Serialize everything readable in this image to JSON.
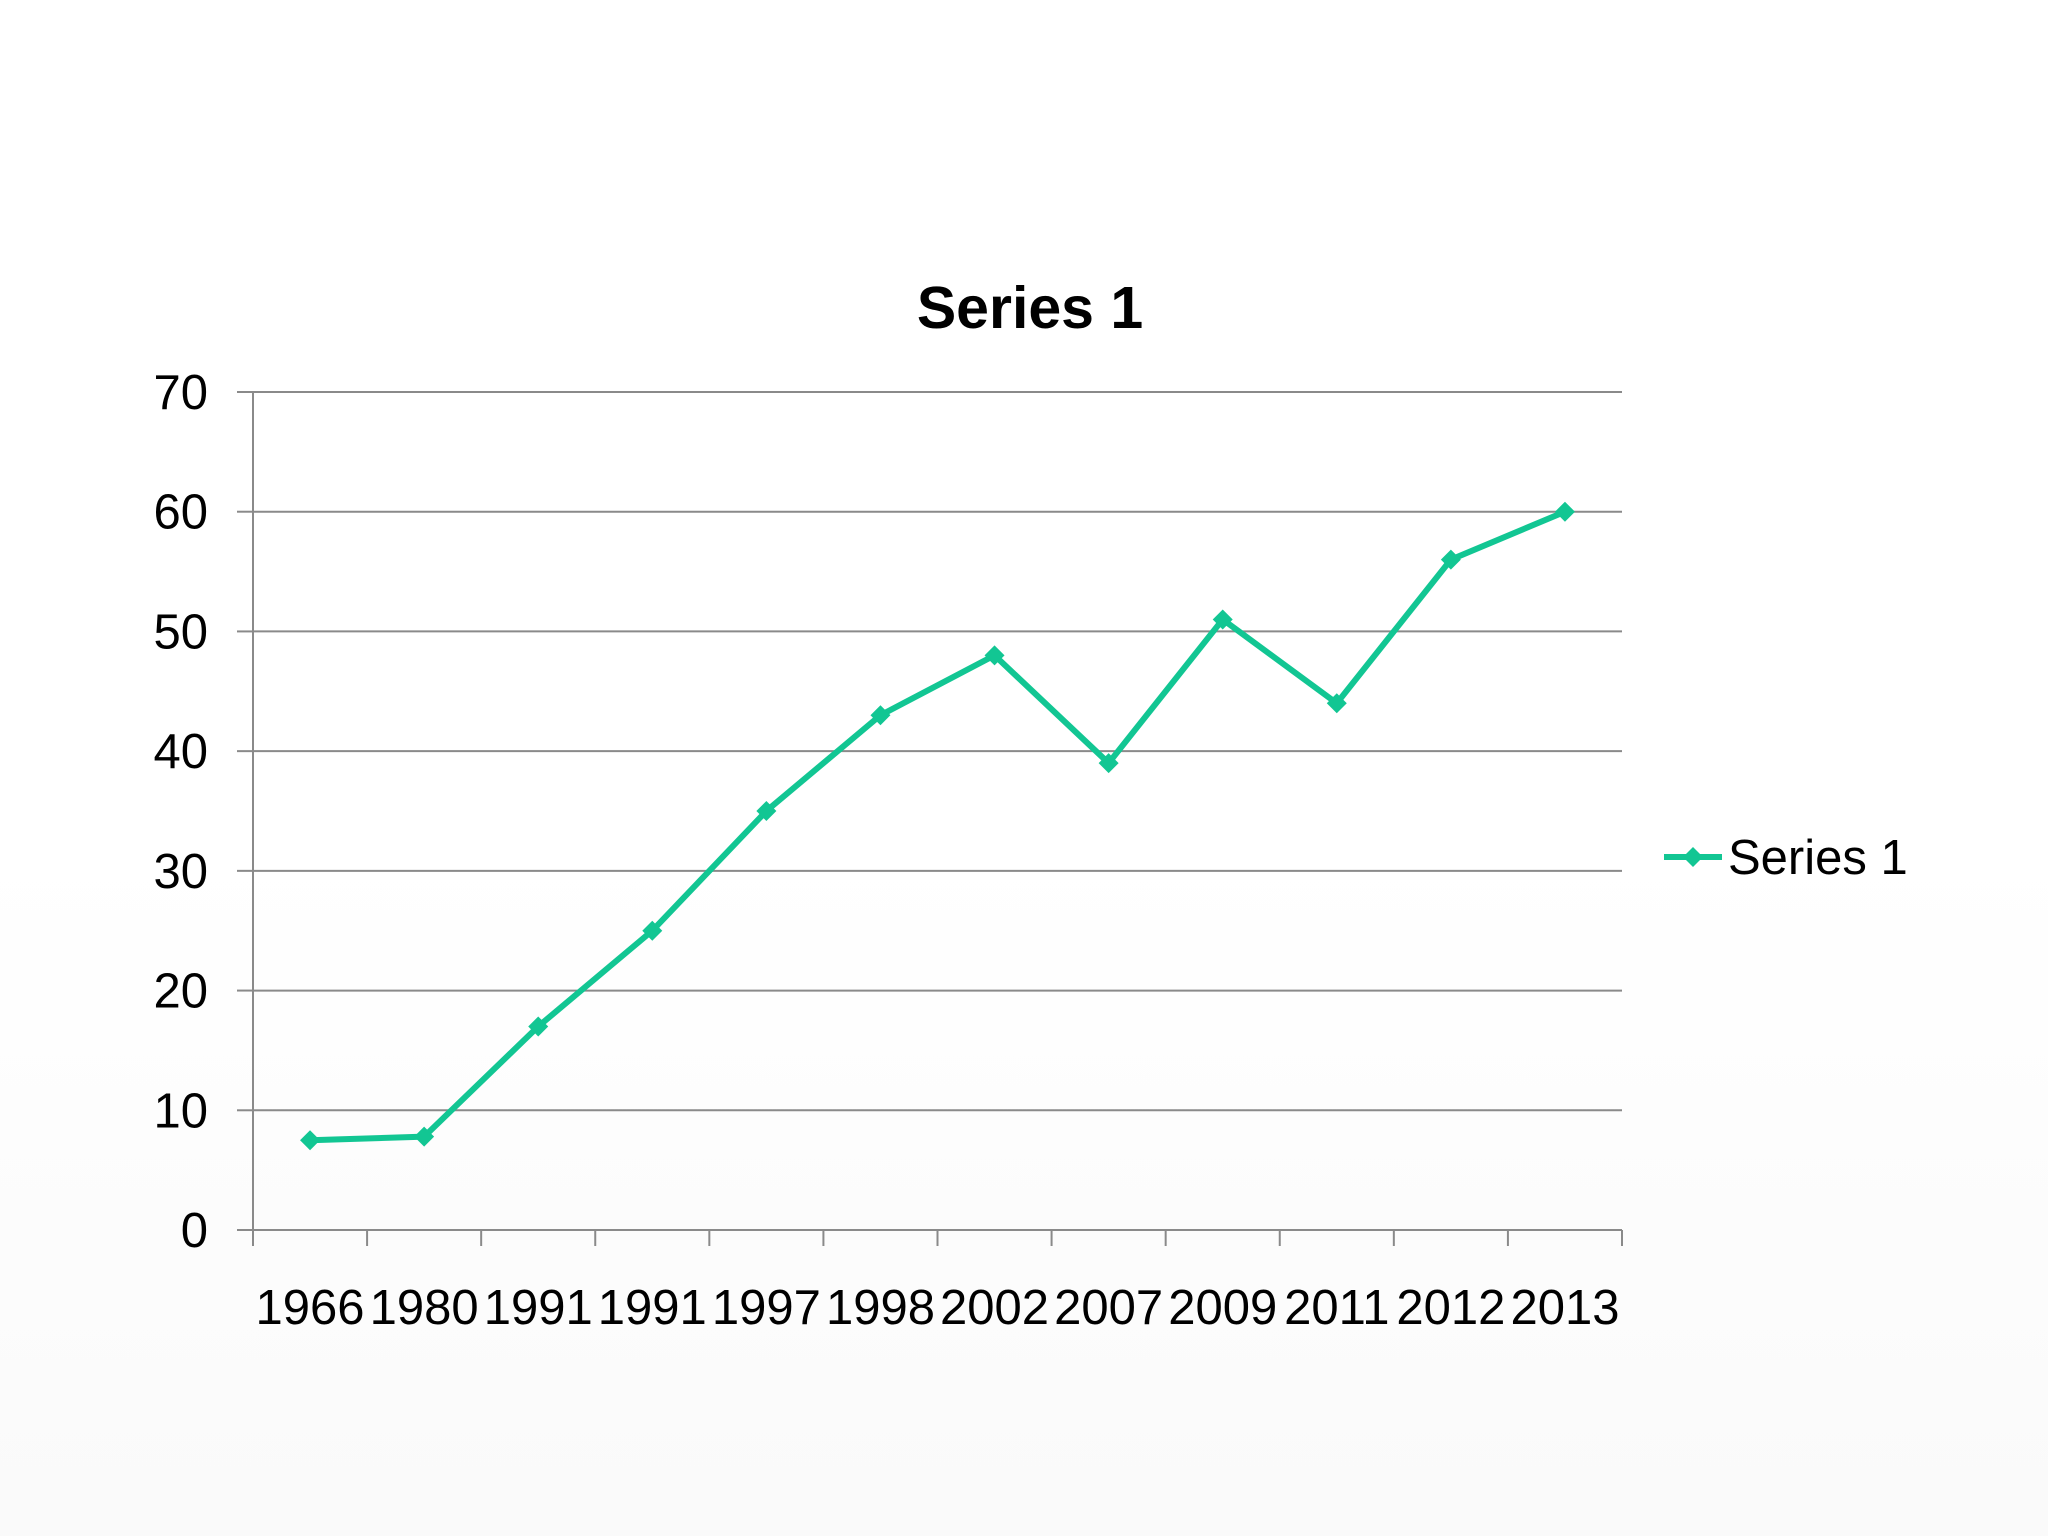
{
  "chart_data": {
    "type": "line",
    "title": "Series 1",
    "xlabel": "",
    "ylabel": "",
    "categories": [
      "1966",
      "1980",
      "1991",
      "1991",
      "1997",
      "1998",
      "2002",
      "2007",
      "2009",
      "2011",
      "2012",
      "2013"
    ],
    "series": [
      {
        "name": "Series 1",
        "color": "#12c693",
        "marker": "diamond",
        "values": [
          7.5,
          7.8,
          17,
          25,
          35,
          43,
          48,
          39,
          51,
          44,
          56,
          60
        ]
      }
    ],
    "ylim": [
      0,
      70
    ],
    "yticks": [
      0,
      10,
      20,
      30,
      40,
      50,
      60,
      70
    ],
    "grid": true,
    "legend_position": "right"
  }
}
